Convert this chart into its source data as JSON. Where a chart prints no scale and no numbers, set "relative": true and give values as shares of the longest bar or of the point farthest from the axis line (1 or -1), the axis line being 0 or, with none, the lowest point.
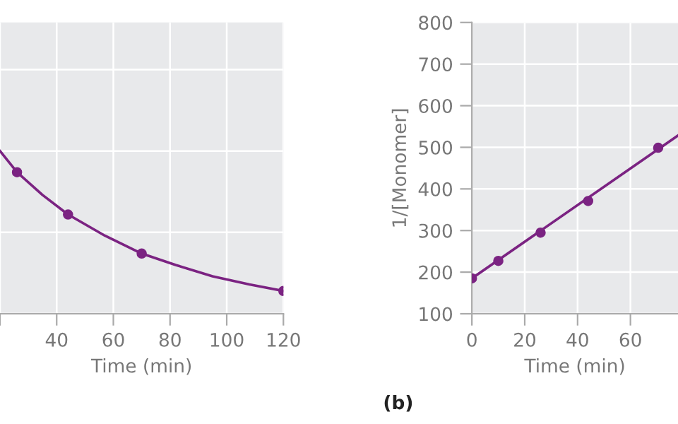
{
  "chart_data": [
    {
      "type": "line",
      "relative": true,
      "xlabel": "Time (min)",
      "xlim": [
        20,
        120
      ],
      "xticks": [
        {
          "value": 20,
          "label": null
        },
        40,
        60,
        80,
        100,
        120
      ],
      "tick_labels": "x",
      "grid": true,
      "series": [
        {
          "color": "#7b2382",
          "marker": "none",
          "x": [
            20,
            26,
            35,
            44,
            57,
            70,
            82,
            95,
            108,
            120
          ],
          "values": [
            1,
            0.87,
            0.73,
            0.61,
            0.48,
            0.37,
            0.3,
            0.23,
            0.18,
            0.14
          ]
        },
        {
          "type": "scatter",
          "color": "#7b2382",
          "marker": "circle",
          "x": [
            26,
            44,
            70,
            120
          ],
          "values": [
            0.87,
            0.61,
            0.37,
            0.14
          ]
        }
      ]
    },
    {
      "type": "line",
      "xlabel": "Time (min)",
      "ylabel": "1/[Monomer]",
      "xlim": [
        0,
        78
      ],
      "xticks": [
        0,
        20,
        40,
        60
      ],
      "ylim": [
        100,
        800
      ],
      "yticks": [
        100,
        200,
        300,
        400,
        500,
        600,
        700,
        800
      ],
      "grid": true,
      "annotations": [
        "(b)"
      ],
      "series": [
        {
          "color": "#7b2382",
          "marker": "none",
          "x": [
            0,
            77.9
          ],
          "values": [
            185,
            528
          ]
        },
        {
          "type": "scatter",
          "color": "#7b2382",
          "marker": "circle",
          "x": [
            0,
            10,
            26,
            44,
            70.5
          ],
          "values": [
            185,
            227,
            295,
            371,
            499
          ]
        }
      ]
    }
  ]
}
